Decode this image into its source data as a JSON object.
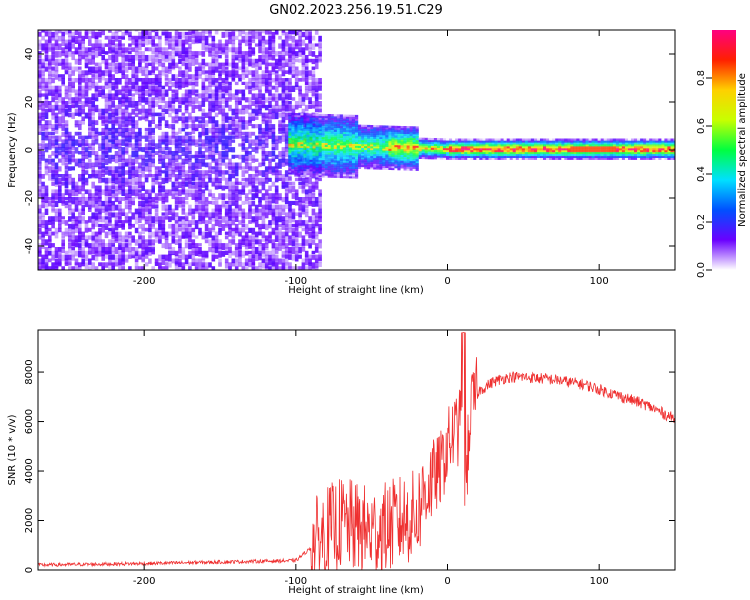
{
  "title": "GN02.2023.256.19.51.C29",
  "chart_data": [
    {
      "type": "heatmap",
      "xlabel": "Height of straight line (km)",
      "ylabel": "Frequency (Hz)",
      "xlim": [
        -270,
        150
      ],
      "ylim": [
        -50,
        50
      ],
      "xticks": [
        -200,
        -100,
        0,
        100
      ],
      "yticks": [
        -40,
        -20,
        0,
        20,
        40
      ],
      "colorbar": {
        "label": "Normalized spectral amplitude",
        "range": [
          0,
          1
        ],
        "ticks": [
          "0.0",
          "0.2",
          "0.4",
          "0.6",
          "0.8"
        ],
        "colors": [
          "#ffffff",
          "#6a00ff",
          "#0050ff",
          "#00e0ff",
          "#00ff40",
          "#c8ff00",
          "#ffd000",
          "#ff2000",
          "#ff0080"
        ]
      },
      "noise_region_x": [
        -270,
        -85
      ],
      "signal_band_center_hz": 0
    },
    {
      "type": "line",
      "xlabel": "Height of straight line (km)",
      "ylabel": "SNR (10 * v/v)",
      "xlim": [
        -270,
        150
      ],
      "ylim": [
        0,
        9700
      ],
      "xticks": [
        -200,
        -100,
        0,
        100
      ],
      "yticks": [
        0,
        2000,
        4000,
        6000,
        8000
      ],
      "line_color": "#ef3030",
      "series": [
        {
          "x": [
            -270,
            -250,
            -200,
            -150,
            -100,
            -90,
            -80,
            -70,
            -60,
            -50,
            -40,
            -30,
            -20,
            -15,
            -10,
            -5,
            0,
            5,
            10,
            12,
            15,
            20,
            30,
            40,
            50,
            60,
            70,
            80,
            90,
            100,
            110,
            120,
            130,
            140,
            150
          ],
          "y": [
            200,
            220,
            260,
            320,
            380,
            900,
            1500,
            1900,
            1700,
            1500,
            1700,
            2000,
            2200,
            3200,
            3700,
            4000,
            5000,
            5600,
            5900,
            3200,
            6400,
            7200,
            7600,
            7800,
            7800,
            7750,
            7700,
            7600,
            7500,
            7300,
            7100,
            6900,
            6700,
            6400,
            6100
          ]
        }
      ]
    }
  ]
}
